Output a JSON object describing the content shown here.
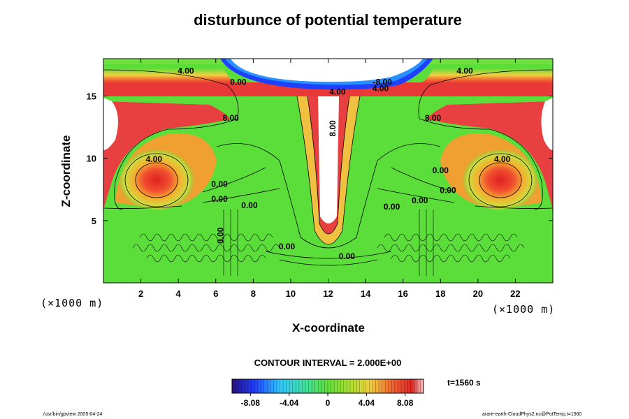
{
  "chart_data": {
    "type": "contour",
    "title": "disturbunce of potential temperature",
    "xlabel": "X-coordinate",
    "ylabel": "Z-coordinate",
    "x_unit": "(×1000 m)",
    "xlim": [
      0,
      24
    ],
    "ylim": [
      0,
      18
    ],
    "x_ticks": [
      2,
      4,
      6,
      8,
      10,
      12,
      14,
      16,
      18,
      20,
      22
    ],
    "y_ticks": [
      5,
      10,
      15
    ],
    "contour_interval_label": "CONTOUR INTERVAL = 2.000E+00",
    "colorbar": {
      "min": -10,
      "max": 10,
      "tick_values": [
        -8.08,
        -4.04,
        0,
        4.04,
        8.08
      ],
      "tick_labels": [
        "-8.08",
        "-4.04",
        "0",
        "4.04",
        "8.08"
      ]
    },
    "contour_labels": [
      {
        "text": "4.00",
        "x": 4.4,
        "z": 16.8
      },
      {
        "text": "0.00",
        "x": 7.2,
        "z": 15.9
      },
      {
        "text": "8.00",
        "x": 6.8,
        "z": 13.0
      },
      {
        "text": "4.00",
        "x": 12.5,
        "z": 15.1
      },
      {
        "text": "8.00",
        "x": 12.4,
        "z": 12.4,
        "rotate": -90
      },
      {
        "text": "-8.00",
        "x": 14.9,
        "z": 15.9
      },
      {
        "text": "4.00",
        "x": 14.8,
        "z": 15.4
      },
      {
        "text": "4.00",
        "x": 19.3,
        "z": 16.8
      },
      {
        "text": "8.00",
        "x": 17.6,
        "z": 13.0
      },
      {
        "text": "4.00",
        "x": 2.7,
        "z": 9.7
      },
      {
        "text": "4.00",
        "x": 21.3,
        "z": 9.7
      },
      {
        "text": "0.00",
        "x": 6.2,
        "z": 7.7
      },
      {
        "text": "0.00",
        "x": 6.2,
        "z": 6.5
      },
      {
        "text": "0.00",
        "x": 7.8,
        "z": 6.0
      },
      {
        "text": "0.00",
        "x": 6.4,
        "z": 3.8,
        "rotate": -90
      },
      {
        "text": "0.00",
        "x": 9.8,
        "z": 2.7
      },
      {
        "text": "0.00",
        "x": 13.0,
        "z": 1.9
      },
      {
        "text": "0.00",
        "x": 18.0,
        "z": 8.8
      },
      {
        "text": "0.00",
        "x": 18.4,
        "z": 7.2
      },
      {
        "text": "0.00",
        "x": 16.9,
        "z": 6.4
      },
      {
        "text": "0.00",
        "x": 15.4,
        "z": 5.9
      }
    ],
    "time_label": "t=1560 s",
    "footer_left": "/usr/bin/gpview 2005-04-24",
    "footer_right": "arare-earth-CloudPhys2.nc@PotTemp,t=1560"
  },
  "colors": {
    "negative_deep": "#2a0f82",
    "zero": "#5cde3a",
    "positive_deep": "#e03030",
    "frame": "#000000"
  }
}
